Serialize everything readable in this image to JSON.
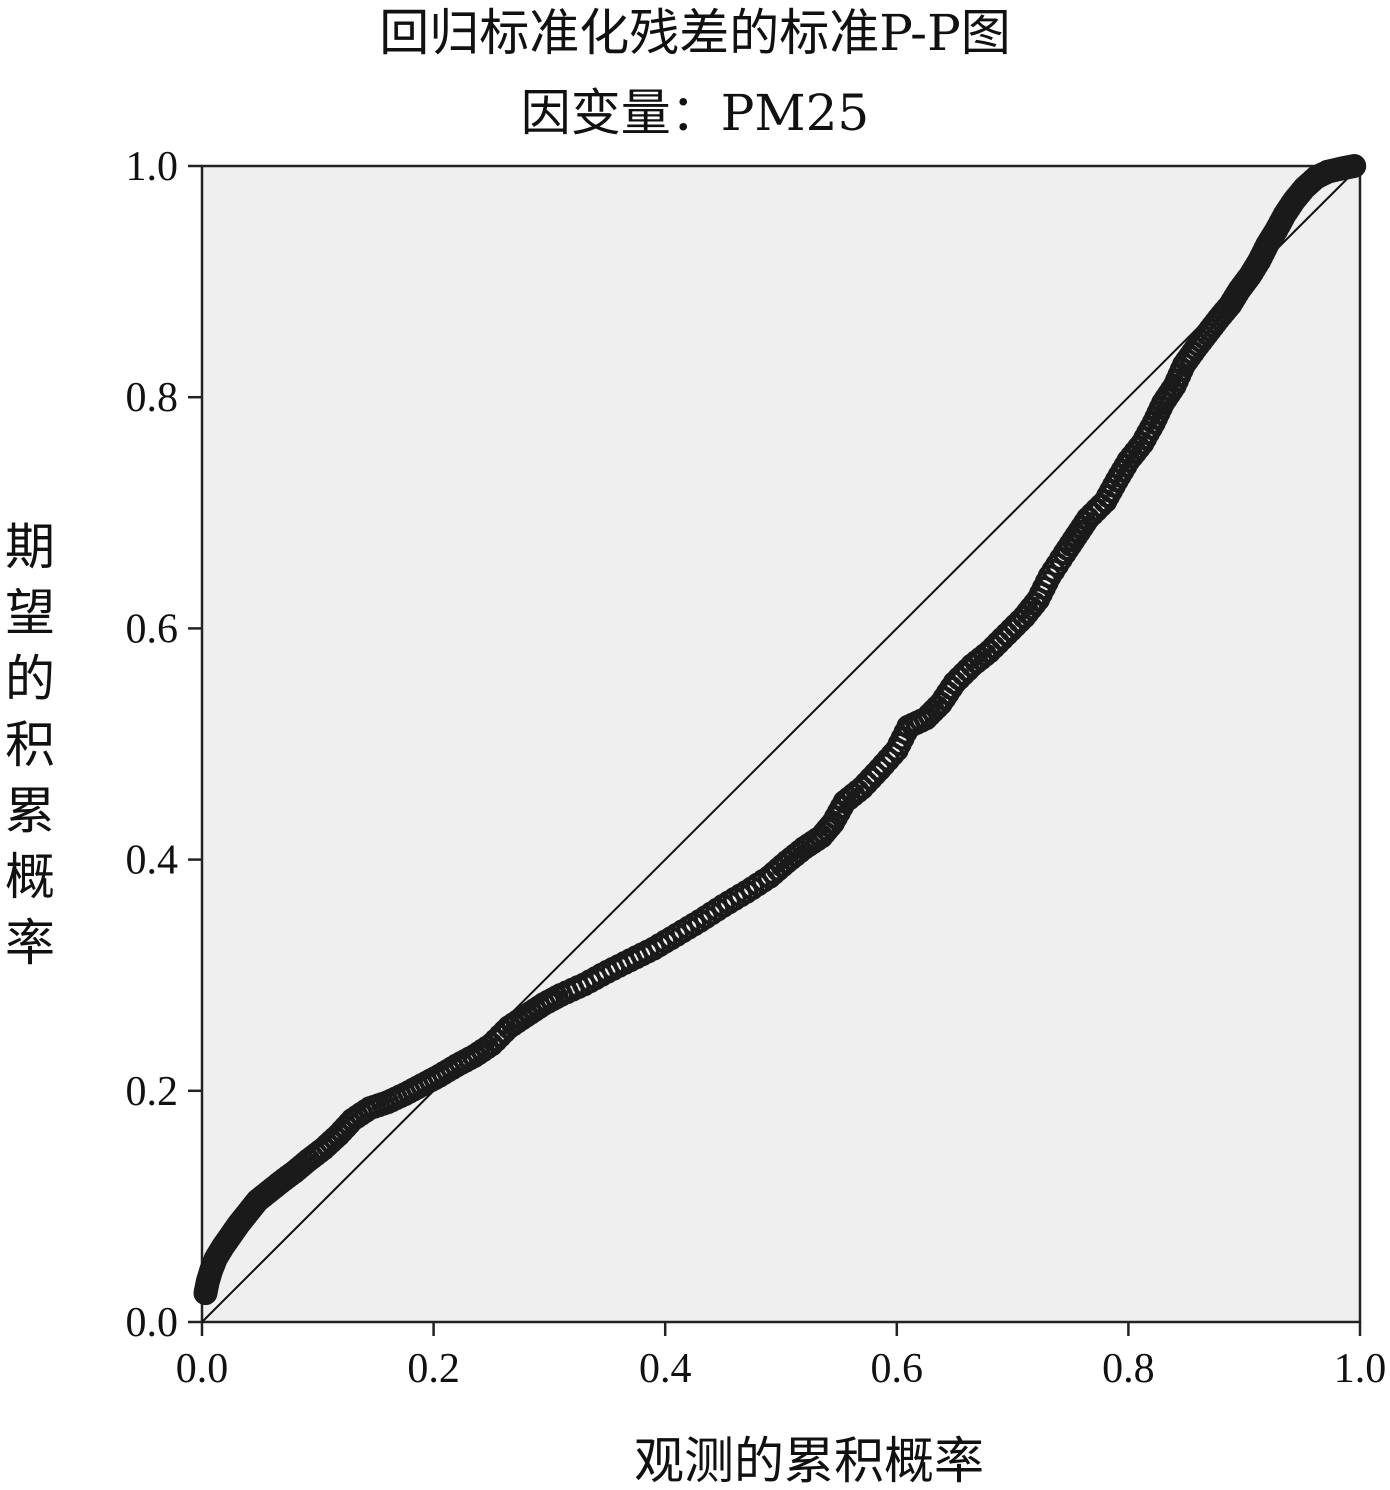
{
  "chart_data": {
    "type": "scatter",
    "title": "回归标准化残差的标准P-P图",
    "subtitle": "因变量：PM25",
    "xlabel": "观测的累积概率",
    "ylabel": "期望的积累概率",
    "xlim": [
      0,
      1
    ],
    "ylim": [
      0,
      1
    ],
    "x_ticks": [
      "0.0",
      "0.2",
      "0.4",
      "0.6",
      "0.8",
      "1.0"
    ],
    "y_ticks": [
      "0.0",
      "0.2",
      "0.4",
      "0.6",
      "0.8",
      "1.0"
    ],
    "grid": false,
    "plot_background": "#efefef",
    "reference_line": {
      "from": [
        0,
        0
      ],
      "to": [
        1,
        1
      ]
    },
    "series": [
      {
        "marker": "hollow-circle",
        "color": "#1a1a1a",
        "points": [
          [
            0.003,
            0.025
          ],
          [
            0.005,
            0.035
          ],
          [
            0.008,
            0.045
          ],
          [
            0.012,
            0.055
          ],
          [
            0.018,
            0.065
          ],
          [
            0.025,
            0.075
          ],
          [
            0.032,
            0.085
          ],
          [
            0.04,
            0.095
          ],
          [
            0.048,
            0.105
          ],
          [
            0.058,
            0.113
          ],
          [
            0.068,
            0.121
          ],
          [
            0.08,
            0.13
          ],
          [
            0.092,
            0.14
          ],
          [
            0.105,
            0.15
          ],
          [
            0.118,
            0.162
          ],
          [
            0.13,
            0.175
          ],
          [
            0.145,
            0.185
          ],
          [
            0.16,
            0.19
          ],
          [
            0.175,
            0.197
          ],
          [
            0.19,
            0.205
          ],
          [
            0.205,
            0.213
          ],
          [
            0.22,
            0.222
          ],
          [
            0.235,
            0.23
          ],
          [
            0.25,
            0.24
          ],
          [
            0.265,
            0.255
          ],
          [
            0.28,
            0.265
          ],
          [
            0.295,
            0.275
          ],
          [
            0.31,
            0.283
          ],
          [
            0.33,
            0.292
          ],
          [
            0.35,
            0.303
          ],
          [
            0.37,
            0.313
          ],
          [
            0.39,
            0.323
          ],
          [
            0.41,
            0.335
          ],
          [
            0.43,
            0.347
          ],
          [
            0.45,
            0.36
          ],
          [
            0.47,
            0.372
          ],
          [
            0.49,
            0.385
          ],
          [
            0.505,
            0.398
          ],
          [
            0.52,
            0.41
          ],
          [
            0.535,
            0.42
          ],
          [
            0.545,
            0.432
          ],
          [
            0.555,
            0.45
          ],
          [
            0.57,
            0.462
          ],
          [
            0.585,
            0.478
          ],
          [
            0.6,
            0.495
          ],
          [
            0.61,
            0.515
          ],
          [
            0.625,
            0.522
          ],
          [
            0.638,
            0.535
          ],
          [
            0.65,
            0.553
          ],
          [
            0.665,
            0.568
          ],
          [
            0.68,
            0.58
          ],
          [
            0.695,
            0.595
          ],
          [
            0.71,
            0.61
          ],
          [
            0.722,
            0.625
          ],
          [
            0.732,
            0.645
          ],
          [
            0.745,
            0.665
          ],
          [
            0.755,
            0.68
          ],
          [
            0.765,
            0.695
          ],
          [
            0.78,
            0.71
          ],
          [
            0.79,
            0.728
          ],
          [
            0.8,
            0.745
          ],
          [
            0.812,
            0.76
          ],
          [
            0.822,
            0.778
          ],
          [
            0.83,
            0.795
          ],
          [
            0.84,
            0.81
          ],
          [
            0.848,
            0.828
          ],
          [
            0.858,
            0.842
          ],
          [
            0.868,
            0.855
          ],
          [
            0.878,
            0.868
          ],
          [
            0.888,
            0.88
          ],
          [
            0.896,
            0.893
          ],
          [
            0.905,
            0.905
          ],
          [
            0.913,
            0.918
          ],
          [
            0.92,
            0.932
          ],
          [
            0.928,
            0.945
          ],
          [
            0.935,
            0.958
          ],
          [
            0.943,
            0.97
          ],
          [
            0.952,
            0.981
          ],
          [
            0.962,
            0.99
          ],
          [
            0.972,
            0.995
          ],
          [
            0.985,
            0.998
          ],
          [
            0.995,
            1.0
          ]
        ]
      }
    ]
  }
}
